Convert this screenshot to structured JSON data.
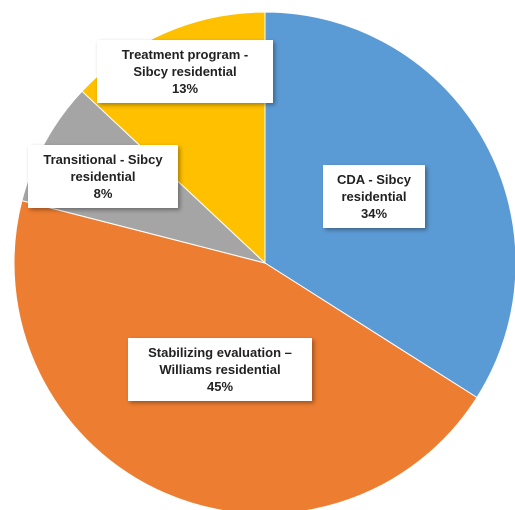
{
  "chart_data": {
    "type": "pie",
    "categories": [
      "CDA - Sibcy residential",
      "Stabilizing evaluation – Williams residential",
      "Transitional - Sibcy residential",
      "Treatment program - Sibcy residential"
    ],
    "values": [
      34,
      45,
      8,
      13
    ],
    "value_labels": [
      "34%",
      "45%",
      "8%",
      "13%"
    ],
    "colors": [
      "#5b9bd5",
      "#ed7d31",
      "#a5a5a5",
      "#ffc000"
    ]
  }
}
